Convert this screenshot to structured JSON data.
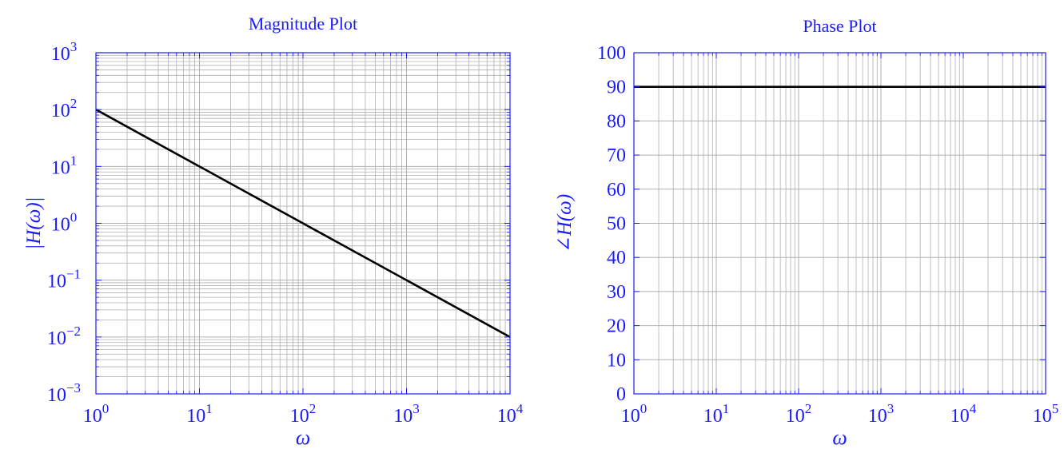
{
  "colors": {
    "text": "#1a1aff",
    "frame": "#1a1aff",
    "grid": "#b0b0b0",
    "line": "#000000",
    "background": "#ffffff"
  },
  "chart_data": [
    {
      "type": "line",
      "title": "Magnitude Plot",
      "xlabel": "ω",
      "ylabel": "|H(ω)|",
      "x_scale": "log",
      "y_scale": "log",
      "xlim": [
        1,
        10000
      ],
      "ylim": [
        0.001,
        1000
      ],
      "grid": true,
      "x_ticks": [
        {
          "value": 1,
          "base": "10",
          "exp": "0"
        },
        {
          "value": 10,
          "base": "10",
          "exp": "1"
        },
        {
          "value": 100,
          "base": "10",
          "exp": "2"
        },
        {
          "value": 1000,
          "base": "10",
          "exp": "3"
        },
        {
          "value": 10000,
          "base": "10",
          "exp": "4"
        }
      ],
      "y_ticks": [
        {
          "value": 0.001,
          "base": "10",
          "exp": "−3"
        },
        {
          "value": 0.01,
          "base": "10",
          "exp": "−2"
        },
        {
          "value": 0.1,
          "base": "10",
          "exp": "−1"
        },
        {
          "value": 1,
          "base": "10",
          "exp": "0"
        },
        {
          "value": 10,
          "base": "10",
          "exp": "1"
        },
        {
          "value": 100,
          "base": "10",
          "exp": "2"
        },
        {
          "value": 1000,
          "base": "10",
          "exp": "3"
        }
      ],
      "series": [
        {
          "x": [
            1,
            10,
            100,
            1000,
            10000
          ],
          "y": [
            100,
            10,
            1,
            0.1,
            0.01
          ]
        }
      ]
    },
    {
      "type": "line",
      "title": "Phase Plot",
      "xlabel": "ω",
      "ylabel": "∠H(ω)",
      "x_scale": "log",
      "y_scale": "linear",
      "xlim": [
        1,
        100000
      ],
      "ylim": [
        0,
        100
      ],
      "grid": true,
      "x_ticks": [
        {
          "value": 1,
          "base": "10",
          "exp": "0"
        },
        {
          "value": 10,
          "base": "10",
          "exp": "1"
        },
        {
          "value": 100,
          "base": "10",
          "exp": "2"
        },
        {
          "value": 1000,
          "base": "10",
          "exp": "3"
        },
        {
          "value": 10000,
          "base": "10",
          "exp": "4"
        },
        {
          "value": 100000,
          "base": "10",
          "exp": "5"
        }
      ],
      "y_ticks": [
        {
          "value": 0,
          "label": "0"
        },
        {
          "value": 10,
          "label": "10"
        },
        {
          "value": 20,
          "label": "20"
        },
        {
          "value": 30,
          "label": "30"
        },
        {
          "value": 40,
          "label": "40"
        },
        {
          "value": 50,
          "label": "50"
        },
        {
          "value": 60,
          "label": "60"
        },
        {
          "value": 70,
          "label": "70"
        },
        {
          "value": 80,
          "label": "80"
        },
        {
          "value": 90,
          "label": "90"
        },
        {
          "value": 100,
          "label": "100"
        }
      ],
      "series": [
        {
          "x": [
            1,
            100000
          ],
          "y": [
            90,
            90
          ]
        }
      ]
    }
  ]
}
